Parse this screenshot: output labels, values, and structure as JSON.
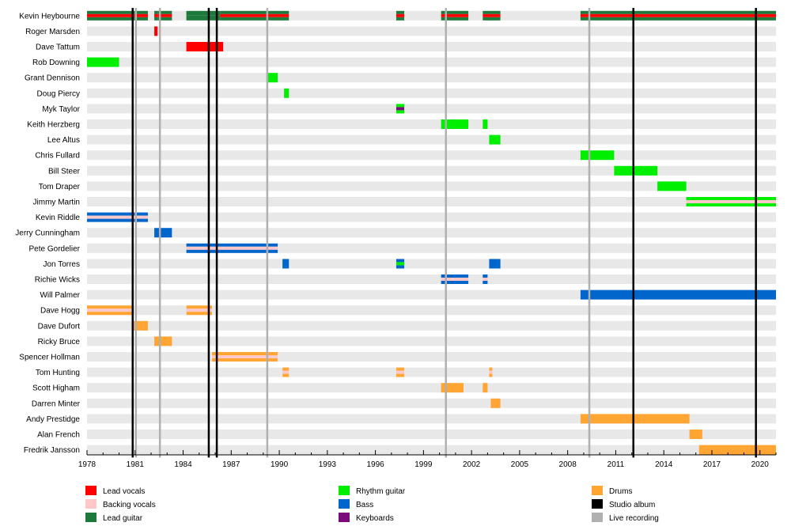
{
  "chart_data": {
    "type": "timeline",
    "title": "",
    "xlabel": "",
    "ylabel": "",
    "x_range": [
      1978,
      2021
    ],
    "x_ticks": [
      1978,
      1981,
      1984,
      1987,
      1990,
      1993,
      1996,
      1999,
      2002,
      2005,
      2008,
      2011,
      2014,
      2017,
      2020
    ],
    "role_colors": {
      "lead_vocals": "#ff0000",
      "backing_vocals": "#ffc8c8",
      "lead_guitar": "#1e7a3c",
      "rhythm_guitar": "#00ee00",
      "bass": "#0066cc",
      "keyboards": "#7a0a7a",
      "drums": "#ffa533",
      "studio_album": "#000000",
      "live_recording": "#b0b0b0"
    },
    "legend": [
      {
        "label": "Lead vocals",
        "role": "lead_vocals"
      },
      {
        "label": "Backing vocals",
        "role": "backing_vocals"
      },
      {
        "label": "Lead guitar",
        "role": "lead_guitar"
      },
      {
        "label": "Rhythm guitar",
        "role": "rhythm_guitar"
      },
      {
        "label": "Bass",
        "role": "bass"
      },
      {
        "label": "Keyboards",
        "role": "keyboards"
      },
      {
        "label": "Drums",
        "role": "drums"
      },
      {
        "label": "Studio album",
        "role": "studio_album"
      },
      {
        "label": "Live recording",
        "role": "live_recording"
      }
    ],
    "studio_albums": [
      1980.85,
      1985.6,
      1986.1,
      2012.1,
      2019.75
    ],
    "live_recordings": [
      1981.05,
      1982.55,
      1989.25,
      2000.4,
      2009.35
    ],
    "members": [
      {
        "name": "Kevin Heybourne",
        "spans": [
          {
            "start": 1978.0,
            "end": 1981.8,
            "roles": [
              "lead_guitar",
              "lead_vocals",
              "lead_guitar"
            ]
          },
          {
            "start": 1982.2,
            "end": 1982.4,
            "roles": [
              "lead_guitar",
              "lead_vocals",
              "lead_guitar"
            ]
          },
          {
            "start": 1982.4,
            "end": 1983.3,
            "roles": [
              "lead_guitar",
              "lead_vocals",
              "lead_guitar"
            ]
          },
          {
            "start": 1984.2,
            "end": 1986.3,
            "roles": [
              "lead_guitar",
              "lead_guitar"
            ]
          },
          {
            "start": 1986.3,
            "end": 1990.6,
            "roles": [
              "lead_guitar",
              "lead_vocals",
              "lead_guitar"
            ]
          },
          {
            "start": 1997.3,
            "end": 1997.8,
            "roles": [
              "lead_guitar",
              "lead_vocals",
              "lead_guitar"
            ]
          },
          {
            "start": 2000.1,
            "end": 2001.8,
            "roles": [
              "lead_guitar",
              "lead_vocals",
              "lead_guitar"
            ]
          },
          {
            "start": 2002.7,
            "end": 2003.8,
            "roles": [
              "lead_guitar",
              "lead_vocals",
              "lead_guitar"
            ]
          },
          {
            "start": 2008.8,
            "end": 2021.0,
            "roles": [
              "lead_guitar",
              "lead_vocals",
              "lead_guitar"
            ]
          }
        ]
      },
      {
        "name": "Roger Marsden",
        "spans": [
          {
            "start": 1982.2,
            "end": 1982.4,
            "roles": [
              "lead_vocals"
            ]
          }
        ]
      },
      {
        "name": "Dave Tattum",
        "spans": [
          {
            "start": 1984.2,
            "end": 1986.5,
            "roles": [
              "lead_vocals"
            ]
          }
        ]
      },
      {
        "name": "Rob Downing",
        "spans": [
          {
            "start": 1978.0,
            "end": 1980.0,
            "roles": [
              "rhythm_guitar"
            ]
          }
        ]
      },
      {
        "name": "Grant Dennison",
        "spans": [
          {
            "start": 1989.2,
            "end": 1989.9,
            "roles": [
              "rhythm_guitar"
            ]
          }
        ]
      },
      {
        "name": "Doug Piercy",
        "spans": [
          {
            "start": 1990.3,
            "end": 1990.6,
            "roles": [
              "rhythm_guitar"
            ]
          }
        ]
      },
      {
        "name": "Myk Taylor",
        "spans": [
          {
            "start": 1997.3,
            "end": 1997.8,
            "roles": [
              "rhythm_guitar",
              "keyboards",
              "rhythm_guitar"
            ]
          }
        ]
      },
      {
        "name": "Keith Herzberg",
        "spans": [
          {
            "start": 2000.1,
            "end": 2001.8,
            "roles": [
              "rhythm_guitar"
            ]
          },
          {
            "start": 2002.7,
            "end": 2003.0,
            "roles": [
              "rhythm_guitar"
            ]
          }
        ]
      },
      {
        "name": "Lee Altus",
        "spans": [
          {
            "start": 2003.1,
            "end": 2003.8,
            "roles": [
              "rhythm_guitar"
            ]
          }
        ]
      },
      {
        "name": "Chris Fullard",
        "spans": [
          {
            "start": 2008.8,
            "end": 2010.9,
            "roles": [
              "rhythm_guitar"
            ]
          }
        ]
      },
      {
        "name": "Bill Steer",
        "spans": [
          {
            "start": 2010.9,
            "end": 2013.6,
            "roles": [
              "rhythm_guitar"
            ]
          }
        ]
      },
      {
        "name": "Tom Draper",
        "spans": [
          {
            "start": 2013.6,
            "end": 2015.4,
            "roles": [
              "rhythm_guitar"
            ]
          }
        ]
      },
      {
        "name": "Jimmy Martin",
        "spans": [
          {
            "start": 2015.4,
            "end": 2021.0,
            "roles": [
              "rhythm_guitar",
              "backing_vocals",
              "rhythm_guitar"
            ]
          }
        ]
      },
      {
        "name": "Kevin Riddle",
        "spans": [
          {
            "start": 1978.0,
            "end": 1981.8,
            "roles": [
              "bass",
              "backing_vocals",
              "bass"
            ]
          }
        ]
      },
      {
        "name": "Jerry Cunningham",
        "spans": [
          {
            "start": 1982.2,
            "end": 1983.3,
            "roles": [
              "bass"
            ]
          }
        ]
      },
      {
        "name": "Pete Gordelier",
        "spans": [
          {
            "start": 1984.2,
            "end": 1989.9,
            "roles": [
              "bass",
              "backing_vocals",
              "bass"
            ]
          }
        ]
      },
      {
        "name": "Jon Torres",
        "spans": [
          {
            "start": 1990.2,
            "end": 1990.6,
            "roles": [
              "bass"
            ]
          },
          {
            "start": 1997.3,
            "end": 1997.8,
            "roles": [
              "bass",
              "rhythm_guitar",
              "bass"
            ]
          },
          {
            "start": 2003.1,
            "end": 2003.8,
            "roles": [
              "bass"
            ]
          }
        ]
      },
      {
        "name": "Richie Wicks",
        "spans": [
          {
            "start": 2000.1,
            "end": 2001.8,
            "roles": [
              "bass",
              "backing_vocals",
              "bass"
            ]
          },
          {
            "start": 2002.7,
            "end": 2003.0,
            "roles": [
              "bass",
              "backing_vocals",
              "bass"
            ]
          }
        ]
      },
      {
        "name": "Will Palmer",
        "spans": [
          {
            "start": 2008.8,
            "end": 2021.0,
            "roles": [
              "bass"
            ]
          }
        ]
      },
      {
        "name": "Dave Hogg",
        "spans": [
          {
            "start": 1978.0,
            "end": 1980.9,
            "roles": [
              "drums",
              "backing_vocals",
              "drums"
            ]
          },
          {
            "start": 1984.2,
            "end": 1985.8,
            "roles": [
              "drums",
              "backing_vocals",
              "drums"
            ]
          }
        ]
      },
      {
        "name": "Dave Dufort",
        "spans": [
          {
            "start": 1980.9,
            "end": 1981.8,
            "roles": [
              "drums"
            ]
          }
        ]
      },
      {
        "name": "Ricky Bruce",
        "spans": [
          {
            "start": 1982.2,
            "end": 1983.3,
            "roles": [
              "drums"
            ]
          }
        ]
      },
      {
        "name": "Spencer Hollman",
        "spans": [
          {
            "start": 1985.8,
            "end": 1989.9,
            "roles": [
              "drums",
              "backing_vocals",
              "drums"
            ]
          }
        ]
      },
      {
        "name": "Tom Hunting",
        "spans": [
          {
            "start": 1990.2,
            "end": 1990.6,
            "roles": [
              "drums",
              "backing_vocals",
              "drums"
            ]
          },
          {
            "start": 1997.3,
            "end": 1997.8,
            "roles": [
              "drums",
              "backing_vocals",
              "drums"
            ]
          },
          {
            "start": 2003.1,
            "end": 2003.3,
            "roles": [
              "drums",
              "backing_vocals",
              "drums"
            ]
          }
        ]
      },
      {
        "name": "Scott Higham",
        "spans": [
          {
            "start": 2000.1,
            "end": 2001.5,
            "roles": [
              "drums"
            ]
          },
          {
            "start": 2002.7,
            "end": 2003.0,
            "roles": [
              "drums"
            ]
          }
        ]
      },
      {
        "name": "Darren Minter",
        "spans": [
          {
            "start": 2003.2,
            "end": 2003.8,
            "roles": [
              "drums"
            ]
          }
        ]
      },
      {
        "name": "Andy Prestidge",
        "spans": [
          {
            "start": 2008.8,
            "end": 2015.6,
            "roles": [
              "drums"
            ]
          }
        ]
      },
      {
        "name": "Alan French",
        "spans": [
          {
            "start": 2015.6,
            "end": 2016.4,
            "roles": [
              "drums"
            ]
          }
        ]
      },
      {
        "name": "Fredrik Jansson",
        "spans": [
          {
            "start": 2016.2,
            "end": 2021.0,
            "roles": [
              "drums"
            ]
          }
        ]
      }
    ]
  }
}
